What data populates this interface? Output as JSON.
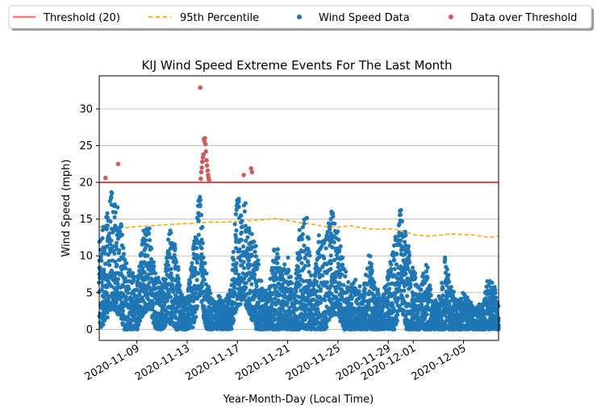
{
  "chart_data": {
    "type": "scatter",
    "title": "KIJ Wind Speed Extreme Events For The Last Month",
    "xlabel": "Year-Month-Day (Local Time)",
    "ylabel": "Wind Speed (mph)",
    "x_range": [
      "2020-11-06T00:00",
      "2020-12-07T19:00"
    ],
    "ylim": [
      -1.5,
      34.5
    ],
    "xticks": [
      "2020-11-09",
      "2020-11-13",
      "2020-11-17",
      "2020-11-21",
      "2020-11-25",
      "2020-11-29",
      "2020-12-01",
      "2020-12-05"
    ],
    "yticks": [
      0,
      5,
      10,
      15,
      20,
      25,
      30
    ],
    "grid": "horizontal",
    "legend_placement": "top, above plot",
    "legend": [
      {
        "label": "Threshold (20)",
        "kind": "line",
        "color": "#f08080"
      },
      {
        "label": "95th Percentile",
        "kind": "dashed-line",
        "color": "#ffa500"
      },
      {
        "label": "Wind Speed Data",
        "kind": "marker",
        "color": "#1f77b4"
      },
      {
        "label": "Data over Threshold",
        "kind": "marker",
        "color": "#cd5c5c"
      }
    ],
    "series": [
      {
        "name": "Threshold (20)",
        "kind": "hline",
        "y": 20,
        "color": "#d62728"
      },
      {
        "name": "95th Percentile",
        "kind": "line",
        "color": "#ffa500",
        "dashed": true,
        "points": [
          [
            "2020-11-06T00:00",
            14.0
          ],
          [
            "2020-11-08T00:00",
            13.8
          ],
          [
            "2020-11-09T00:00",
            14.0
          ],
          [
            "2020-11-10T00:00",
            14.1
          ],
          [
            "2020-11-11T00:00",
            14.2
          ],
          [
            "2020-11-12T00:00",
            14.3
          ],
          [
            "2020-11-13T00:00",
            14.4
          ],
          [
            "2020-11-14T00:00",
            14.5
          ],
          [
            "2020-11-15T00:00",
            14.6
          ],
          [
            "2020-11-16T00:00",
            14.6
          ],
          [
            "2020-11-17T00:00",
            14.7
          ],
          [
            "2020-11-18T00:00",
            14.8
          ],
          [
            "2020-11-19T00:00",
            14.9
          ],
          [
            "2020-11-20T00:00",
            15.1
          ],
          [
            "2020-11-21T00:00",
            14.8
          ],
          [
            "2020-11-22T00:00",
            14.5
          ],
          [
            "2020-11-23T00:00",
            14.3
          ],
          [
            "2020-11-24T00:00",
            14.0
          ],
          [
            "2020-11-25T00:00",
            13.9
          ],
          [
            "2020-11-26T00:00",
            14.1
          ],
          [
            "2020-11-27T00:00",
            13.8
          ],
          [
            "2020-11-28T00:00",
            13.6
          ],
          [
            "2020-11-29T00:00",
            13.7
          ],
          [
            "2020-11-30T00:00",
            13.5
          ],
          [
            "2020-12-01T00:00",
            12.9
          ],
          [
            "2020-12-02T00:00",
            12.7
          ],
          [
            "2020-12-03T00:00",
            12.8
          ],
          [
            "2020-12-04T00:00",
            13.0
          ],
          [
            "2020-12-05T00:00",
            12.9
          ],
          [
            "2020-12-06T00:00",
            12.8
          ],
          [
            "2020-12-07T00:00",
            12.5
          ],
          [
            "2020-12-07T19:00",
            12.7
          ]
        ]
      },
      {
        "name": "Wind Speed Data",
        "kind": "points",
        "color": "#1f77b4",
        "hourly_envelope": [
          [
            "2020-11-06T00:00",
            0,
            12
          ],
          [
            "2020-11-06T12:00",
            1,
            15
          ],
          [
            "2020-11-07T00:00",
            3,
            19
          ],
          [
            "2020-11-07T12:00",
            2,
            17
          ],
          [
            "2020-11-08T00:00",
            0,
            11
          ],
          [
            "2020-11-08T12:00",
            0,
            8
          ],
          [
            "2020-11-09T00:00",
            0,
            7
          ],
          [
            "2020-11-09T12:00",
            2,
            14
          ],
          [
            "2020-11-10T00:00",
            3,
            14
          ],
          [
            "2020-11-10T12:00",
            0,
            8
          ],
          [
            "2020-11-11T00:00",
            0,
            6
          ],
          [
            "2020-11-11T12:00",
            1,
            13
          ],
          [
            "2020-11-12T00:00",
            0,
            15
          ],
          [
            "2020-11-12T12:00",
            0,
            5
          ],
          [
            "2020-11-13T00:00",
            0,
            4
          ],
          [
            "2020-11-13T12:00",
            0,
            12
          ],
          [
            "2020-11-14T00:00",
            5,
            19
          ],
          [
            "2020-11-14T12:00",
            0,
            8
          ],
          [
            "2020-11-15T00:00",
            0,
            4
          ],
          [
            "2020-11-15T12:00",
            0,
            5
          ],
          [
            "2020-11-16T00:00",
            0,
            4
          ],
          [
            "2020-11-16T12:00",
            0,
            6
          ],
          [
            "2020-11-17T00:00",
            3,
            19
          ],
          [
            "2020-11-17T12:00",
            4,
            19
          ],
          [
            "2020-11-18T00:00",
            2,
            14
          ],
          [
            "2020-11-18T12:00",
            0,
            11
          ],
          [
            "2020-11-19T00:00",
            0,
            6
          ],
          [
            "2020-11-19T12:00",
            0,
            5
          ],
          [
            "2020-11-20T00:00",
            0,
            13
          ],
          [
            "2020-11-20T12:00",
            0,
            8
          ],
          [
            "2020-11-21T00:00",
            0,
            10
          ],
          [
            "2020-11-21T12:00",
            0,
            5
          ],
          [
            "2020-11-22T00:00",
            0,
            14
          ],
          [
            "2020-11-22T12:00",
            0,
            16
          ],
          [
            "2020-11-23T00:00",
            0,
            6
          ],
          [
            "2020-11-23T12:00",
            0,
            13
          ],
          [
            "2020-11-24T00:00",
            0,
            13
          ],
          [
            "2020-11-24T12:00",
            2,
            17
          ],
          [
            "2020-11-25T00:00",
            2,
            14
          ],
          [
            "2020-11-25T12:00",
            0,
            9
          ],
          [
            "2020-11-26T00:00",
            0,
            6
          ],
          [
            "2020-11-26T12:00",
            0,
            7
          ],
          [
            "2020-11-27T00:00",
            0,
            5
          ],
          [
            "2020-11-27T12:00",
            0,
            12
          ],
          [
            "2020-11-28T00:00",
            0,
            6
          ],
          [
            "2020-11-28T12:00",
            0,
            4
          ],
          [
            "2020-11-29T00:00",
            0,
            8
          ],
          [
            "2020-11-29T12:00",
            0,
            12
          ],
          [
            "2020-11-30T00:00",
            3,
            17
          ],
          [
            "2020-11-30T12:00",
            0,
            12
          ],
          [
            "2020-12-01T00:00",
            0,
            9
          ],
          [
            "2020-12-01T12:00",
            0,
            5
          ],
          [
            "2020-12-02T00:00",
            0,
            10
          ],
          [
            "2020-12-02T12:00",
            0,
            4
          ],
          [
            "2020-12-03T00:00",
            0,
            4
          ],
          [
            "2020-12-03T12:00",
            0,
            10
          ],
          [
            "2020-12-04T00:00",
            0,
            6
          ],
          [
            "2020-12-04T12:00",
            0,
            4
          ],
          [
            "2020-12-05T00:00",
            0,
            5
          ],
          [
            "2020-12-05T12:00",
            0,
            4
          ],
          [
            "2020-12-06T00:00",
            0,
            3
          ],
          [
            "2020-12-06T12:00",
            0,
            4
          ],
          [
            "2020-12-07T00:00",
            0,
            7
          ],
          [
            "2020-12-07T12:00",
            0,
            6
          ],
          [
            "2020-12-07T19:00",
            0,
            3
          ]
        ]
      },
      {
        "name": "Data over Threshold",
        "kind": "points",
        "color": "#cd5c5c",
        "points": [
          [
            "2020-11-06T12:00",
            20.6
          ],
          [
            "2020-11-07T12:00",
            22.5
          ],
          [
            "2020-11-14T01:00",
            32.9
          ],
          [
            "2020-11-14T02:00",
            20.5
          ],
          [
            "2020-11-14T03:00",
            21.4
          ],
          [
            "2020-11-14T04:00",
            22.0
          ],
          [
            "2020-11-14T05:00",
            22.8
          ],
          [
            "2020-11-14T06:00",
            23.4
          ],
          [
            "2020-11-14T07:00",
            23.8
          ],
          [
            "2020-11-14T08:00",
            25.9
          ],
          [
            "2020-11-14T09:00",
            25.6
          ],
          [
            "2020-11-14T10:00",
            26.0
          ],
          [
            "2020-11-14T11:00",
            25.2
          ],
          [
            "2020-11-14T12:00",
            24.2
          ],
          [
            "2020-11-14T13:00",
            23.0
          ],
          [
            "2020-11-14T14:00",
            22.3
          ],
          [
            "2020-11-14T15:00",
            21.6
          ],
          [
            "2020-11-14T16:00",
            21.0
          ],
          [
            "2020-11-14T17:00",
            20.6
          ],
          [
            "2020-11-14T18:00",
            20.3
          ],
          [
            "2020-11-17T12:00",
            21.0
          ],
          [
            "2020-11-18T02:00",
            21.9
          ],
          [
            "2020-11-18T04:00",
            21.4
          ]
        ]
      }
    ]
  }
}
